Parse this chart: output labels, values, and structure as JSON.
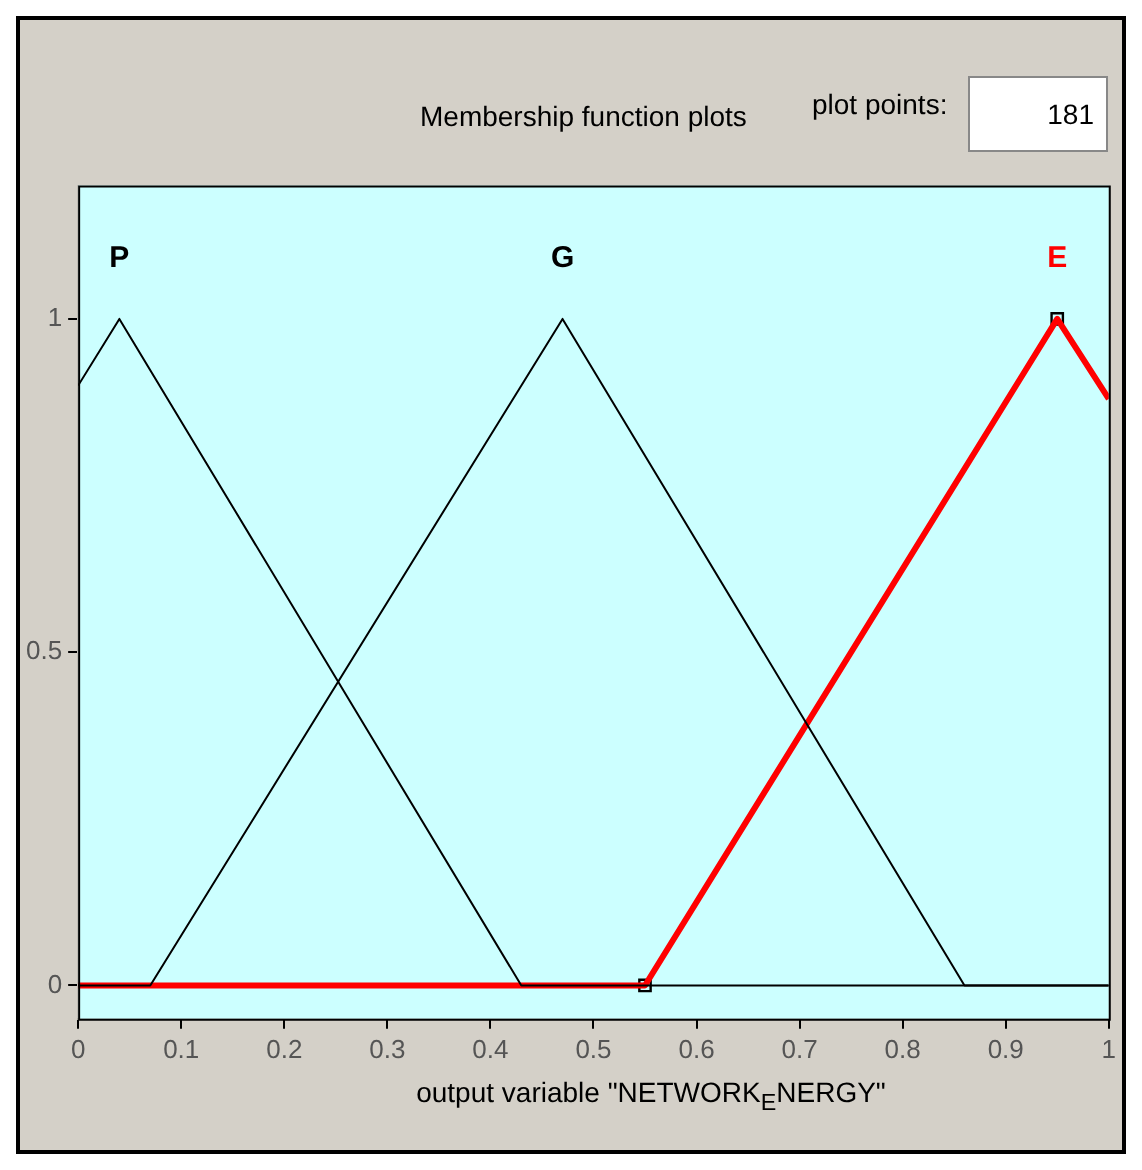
{
  "chart_data": {
    "type": "line",
    "title": "Membership function plots",
    "xlabel": "output variable \"NETWORK$_{E}$NERGY\"",
    "annotations": [
      "plot points:",
      "181"
    ],
    "xlim": [
      0,
      1
    ],
    "ylim": [
      -0.05,
      1.2
    ],
    "xticks": [
      0,
      0.1,
      0.2,
      0.3,
      0.4,
      0.5,
      0.6,
      0.7,
      0.8,
      0.9,
      1
    ],
    "yticks": [
      0,
      0.5,
      1
    ],
    "grid": false,
    "legend": false,
    "marker": "none",
    "line_style": "solid",
    "series": [
      {
        "name": "P",
        "color": "#000000",
        "x": [
          0,
          0.04,
          0.43,
          1
        ],
        "values": [
          0.9,
          1,
          0,
          0
        ]
      },
      {
        "name": "G",
        "color": "#000000",
        "x": [
          0,
          0.07,
          0.47,
          0.86,
          1
        ],
        "values": [
          0,
          0,
          1,
          0,
          0
        ]
      },
      {
        "name": "E",
        "color": "#ff0000",
        "x": [
          0,
          0.55,
          0.95,
          1
        ],
        "values": [
          0,
          0,
          1,
          0.88
        ]
      },
      {
        "type": "scatter",
        "color": "#000000",
        "marker": "square",
        "x": [
          0.55,
          0.95
        ],
        "values": [
          0,
          1
        ]
      }
    ]
  }
}
